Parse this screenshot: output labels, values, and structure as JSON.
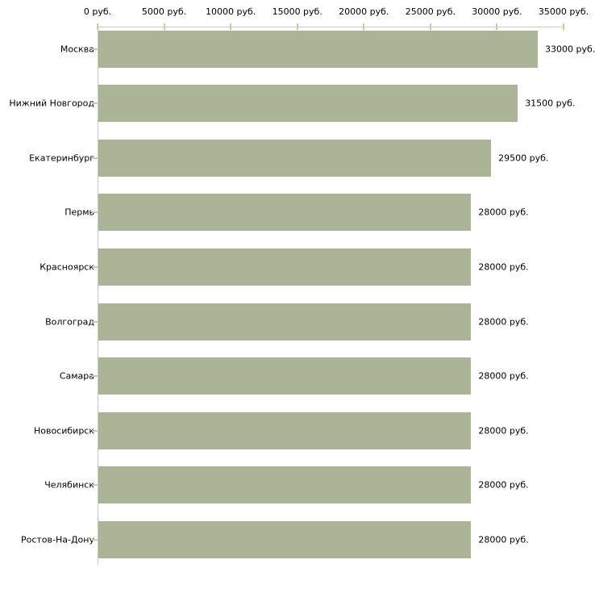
{
  "chart_data": {
    "type": "bar",
    "orientation": "horizontal",
    "title": "",
    "xlabel": "",
    "ylabel": "",
    "unit": "руб.",
    "categories": [
      "Москва",
      "Нижний Новгород",
      "Екатеринбург",
      "Пермь",
      "Красноярск",
      "Волгоград",
      "Самара",
      "Новосибирск",
      "Челябинск",
      "Ростов-На-Дону"
    ],
    "values": [
      33000,
      31500,
      29500,
      28000,
      28000,
      28000,
      28000,
      28000,
      28000,
      28000
    ],
    "value_labels": [
      "33000 руб.",
      "31500 руб.",
      "29500 руб.",
      "28000 руб.",
      "28000 руб.",
      "28000 руб.",
      "28000 руб.",
      "28000 руб.",
      "28000 руб.",
      "28000 руб."
    ],
    "xlim": [
      0,
      35000
    ],
    "x_ticks": [
      0,
      5000,
      10000,
      15000,
      20000,
      25000,
      30000,
      35000
    ],
    "x_tick_labels": [
      "0 руб.",
      "5000 руб.",
      "10000 руб.",
      "15000 руб.",
      "20000 руб.",
      "25000 руб.",
      "30000 руб.",
      "35000 руб."
    ],
    "grid": false,
    "legend": false,
    "colors": {
      "bar_fill": "#acb497",
      "axis_line": "#c8c8c8",
      "tick_mark": "#cccc99",
      "text": "#000000",
      "background": "#ffffff"
    }
  }
}
